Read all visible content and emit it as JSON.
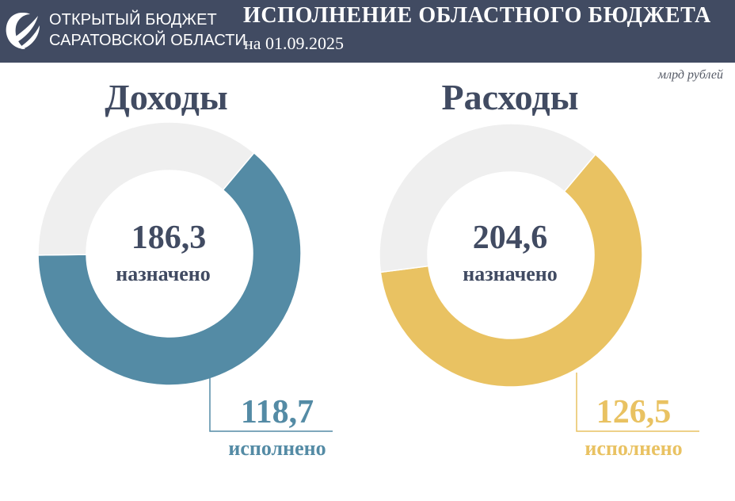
{
  "header": {
    "brand_line1": "ОТКРЫТЫЙ БЮДЖЕТ",
    "brand_line2": "САРАТОВСКОЙ ОБЛАСТИ",
    "title": "ИСПОЛНЕНИЕ ОБЛАСТНОГО БЮДЖЕТА",
    "date": "на 01.09.2025",
    "background_color": "#414b62",
    "logo_icon": "swoosh-globe-icon"
  },
  "units": "млрд рублей",
  "chart_data": [
    {
      "type": "pie",
      "title": "Доходы",
      "total": 186.3,
      "total_label": "186,3",
      "total_caption": "назначено",
      "executed": 118.7,
      "executed_label": "118,7",
      "executed_caption": "исполнено",
      "executed_color": "#548ba5",
      "remaining_color": "#efefef"
    },
    {
      "type": "pie",
      "title": "Расходы",
      "total": 204.6,
      "total_label": "204,6",
      "total_caption": "назначено",
      "executed": 126.5,
      "executed_label": "126,5",
      "executed_caption": "исполнено",
      "executed_color": "#e9c262",
      "remaining_color": "#efefef"
    }
  ]
}
